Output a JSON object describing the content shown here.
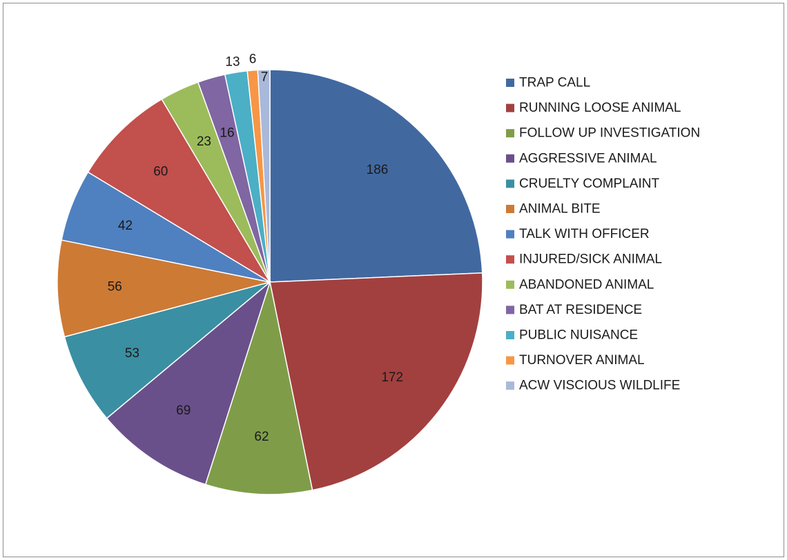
{
  "chart_data": {
    "type": "pie",
    "categories": [
      "TRAP CALL",
      "RUNNING LOOSE ANIMAL",
      "FOLLOW UP INVESTIGATION",
      "AGGRESSIVE ANIMAL",
      "CRUELTY COMPLAINT",
      "ANIMAL BITE",
      "TALK WITH OFFICER",
      "INJURED/SICK ANIMAL",
      "ABANDONED ANIMAL",
      "BAT AT RESIDENCE",
      "PUBLIC NUISANCE",
      "TURNOVER ANIMAL",
      "ACW VISCIOUS WILDLIFE"
    ],
    "values": [
      186,
      172,
      62,
      69,
      53,
      56,
      42,
      60,
      23,
      16,
      13,
      6,
      7
    ],
    "colors": [
      "#4169a0",
      "#a2403f",
      "#7f9d49",
      "#6a508a",
      "#3a8fa2",
      "#cd7a35",
      "#4f80c0",
      "#c2504d",
      "#9cbc5b",
      "#8066a2",
      "#4bafc6",
      "#f79646",
      "#a9b9da"
    ],
    "title": "",
    "legend_position": "right",
    "data_labels": true
  }
}
